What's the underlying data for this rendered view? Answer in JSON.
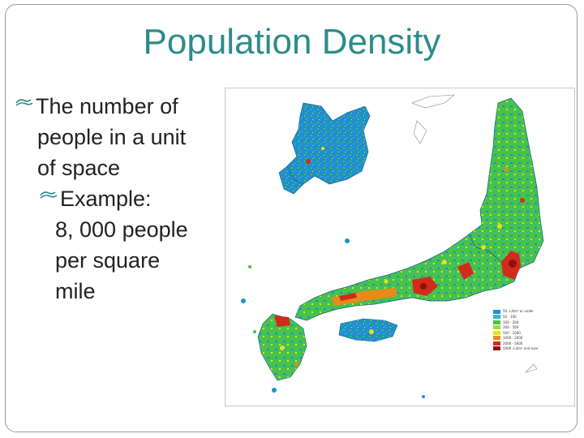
{
  "slide": {
    "title": "Population Density",
    "bullets": [
      {
        "text_lines": [
          "The number of",
          "people in a unit",
          "of space"
        ]
      },
      {
        "text_lines": [
          "Example:",
          "8, 000 people",
          "per square",
          "mile"
        ]
      }
    ]
  },
  "map": {
    "icon": "japan-population-density-map",
    "colors": {
      "low": "#1f8fd0",
      "mid_low": "#39b6c4",
      "mid": "#47c24a",
      "mid_high": "#e6e21c",
      "high": "#e88a1a",
      "very_high": "#d42a1a",
      "highest": "#8e1010"
    },
    "legend": [
      {
        "label": "50 人/km² or under",
        "color": "#1f8fd0"
      },
      {
        "label": "50 - 100",
        "color": "#39b6c4"
      },
      {
        "label": "100 - 200",
        "color": "#47c24a"
      },
      {
        "label": "200 - 500",
        "color": "#a6d63a"
      },
      {
        "label": "500 - 1000",
        "color": "#e6e21c"
      },
      {
        "label": "1000 - 2000",
        "color": "#e88a1a"
      },
      {
        "label": "2000 - 5000",
        "color": "#d42a1a"
      },
      {
        "label": "5000 人/km² and over",
        "color": "#8e1010"
      }
    ]
  }
}
